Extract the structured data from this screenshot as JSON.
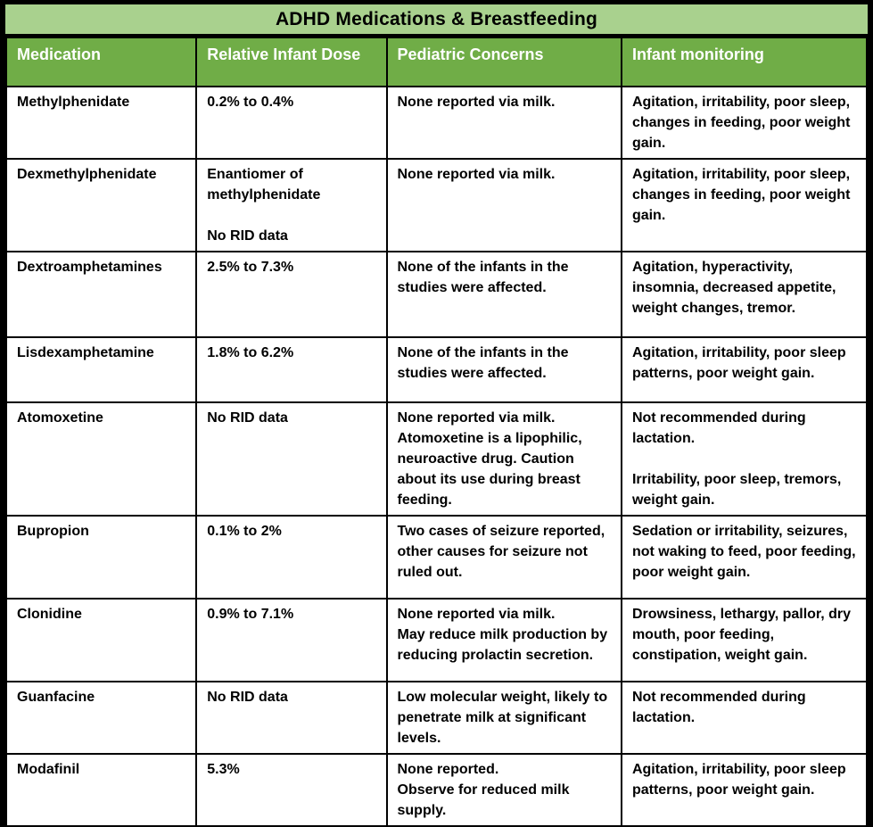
{
  "title": "ADHD Medications & Breastfeeding",
  "colors": {
    "title_bg": "#a9d18e",
    "header_bg": "#70ad47",
    "header_text": "#ffffff",
    "border": "#000000",
    "cell_bg": "#ffffff"
  },
  "table": {
    "headers": [
      "Medication",
      "Relative Infant Dose",
      "Pediatric Concerns",
      "Infant monitoring"
    ],
    "rows": [
      {
        "medication": "Methylphenidate",
        "rid": "0.2% to 0.4%",
        "concerns": "None reported via milk.",
        "monitoring": "Agitation, irritability, poor sleep, changes in feeding, poor weight gain."
      },
      {
        "medication": "Dexmethylphenidate",
        "rid": "Enantiomer of methylphenidate\n\nNo RID data",
        "concerns": "None reported via milk.",
        "monitoring": "Agitation, irritability, poor sleep, changes in feeding, poor weight gain."
      },
      {
        "medication": "Dextroamphetamines",
        "rid": "2.5% to 7.3%",
        "concerns": "None of the infants in the studies were affected.",
        "monitoring": "Agitation, hyperactivity, insomnia, decreased appetite, weight changes, tremor."
      },
      {
        "medication": "Lisdexamphetamine",
        "rid": "1.8% to 6.2%",
        "concerns": "None of the infants in the studies were affected.",
        "monitoring": "Agitation, irritability, poor sleep patterns, poor weight gain."
      },
      {
        "medication": "Atomoxetine",
        "rid": "No RID data",
        "concerns": "None reported via milk.\nAtomoxetine is a lipophilic, neuroactive drug. Caution about its use during breast feeding.",
        "monitoring": "Not recommended during lactation.\n\nIrritability, poor sleep, tremors, weight gain."
      },
      {
        "medication": "Bupropion",
        "rid": "0.1% to 2%",
        "concerns": "Two cases of seizure reported, other causes for seizure not ruled out.",
        "monitoring": "Sedation or irritability, seizures, not waking to feed, poor feeding, poor weight gain."
      },
      {
        "medication": "Clonidine",
        "rid": "0.9% to 7.1%",
        "concerns": "None reported via milk.\nMay reduce milk production by reducing prolactin secretion.",
        "monitoring": "Drowsiness, lethargy, pallor, dry mouth, poor feeding, constipation, weight gain."
      },
      {
        "medication": "Guanfacine",
        "rid": "No RID data",
        "concerns": "Low molecular weight, likely to penetrate milk at significant levels.",
        "monitoring": "Not recommended during lactation."
      },
      {
        "medication": "Modafinil",
        "rid": "5.3%",
        "concerns": "None reported.\nObserve for reduced milk supply.",
        "monitoring": "Agitation, irritability, poor sleep patterns, poor weight gain."
      }
    ]
  }
}
